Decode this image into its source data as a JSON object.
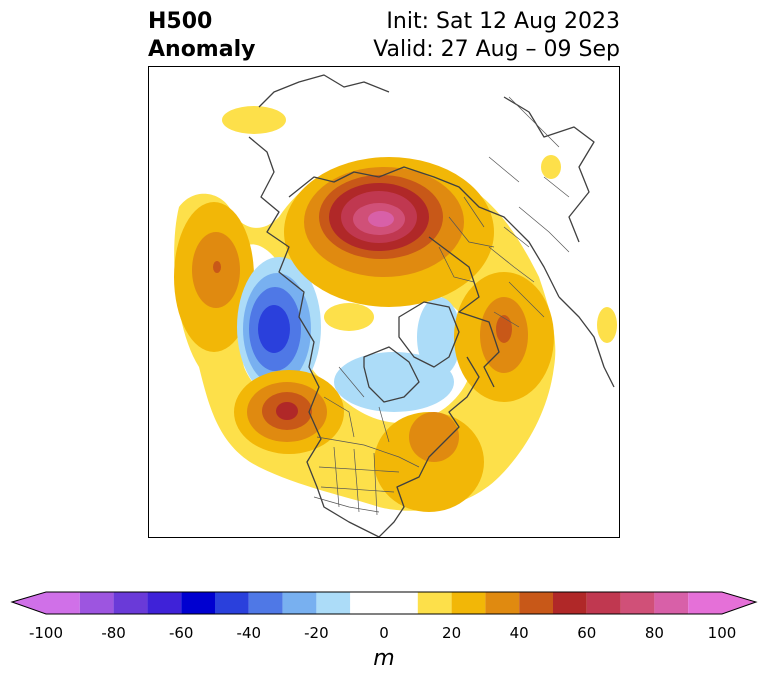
{
  "title": {
    "left_line1": "H500",
    "left_line2": "Anomaly",
    "right_line1": "Init: Sat 12 Aug 2023",
    "right_line2": "Valid: 27 Aug – 09 Sep"
  },
  "colorbar": {
    "unit": "m",
    "ticks": [
      "-100",
      "-80",
      "-60",
      "-40",
      "-20",
      "0",
      "20",
      "40",
      "60",
      "80",
      "100"
    ],
    "bins": [
      {
        "from": -100,
        "to": -90,
        "color": "#d070e8"
      },
      {
        "from": -90,
        "to": -80,
        "color": "#9d55e0"
      },
      {
        "from": -80,
        "to": -70,
        "color": "#6a3ad8"
      },
      {
        "from": -70,
        "to": -60,
        "color": "#3f22d8"
      },
      {
        "from": -60,
        "to": -50,
        "color": "#0000d0"
      },
      {
        "from": -50,
        "to": -40,
        "color": "#2a40dc"
      },
      {
        "from": -40,
        "to": -30,
        "color": "#4f78e6"
      },
      {
        "from": -30,
        "to": -20,
        "color": "#78b0f0"
      },
      {
        "from": -20,
        "to": -10,
        "color": "#acdcf8"
      },
      {
        "from": -10,
        "to": 10,
        "color": "#ffffff"
      },
      {
        "from": 10,
        "to": 20,
        "color": "#fde04a"
      },
      {
        "from": 20,
        "to": 30,
        "color": "#f2b707"
      },
      {
        "from": 30,
        "to": 40,
        "color": "#e08a10"
      },
      {
        "from": 40,
        "to": 50,
        "color": "#c85818"
      },
      {
        "from": 50,
        "to": 60,
        "color": "#b02828"
      },
      {
        "from": 60,
        "to": 70,
        "color": "#c03850"
      },
      {
        "from": 70,
        "to": 80,
        "color": "#d05078"
      },
      {
        "from": 80,
        "to": 90,
        "color": "#d860a8"
      },
      {
        "from": 90,
        "to": 100,
        "color": "#e570d8"
      }
    ],
    "extend_low_color": "#d070e8",
    "extend_high_color": "#e570d8"
  },
  "map": {
    "projection": "north-polar-stereographic",
    "field": "500 hPa geopotential height anomaly",
    "features": [
      {
        "name": "ridge-north-pacific",
        "peak_value": 40
      },
      {
        "name": "trough-gulf-of-alaska",
        "peak_value": -60
      },
      {
        "name": "ridge-northwest-us-pacific",
        "peak_value": 50
      },
      {
        "name": "ridge-eastern-canada",
        "peak_value": 30
      },
      {
        "name": "ridge-northern-russia",
        "peak_value": 90
      },
      {
        "name": "ridge-central-asia",
        "peak_value": 40
      },
      {
        "name": "trough-canadian-arctic",
        "peak_value": -20
      }
    ]
  }
}
